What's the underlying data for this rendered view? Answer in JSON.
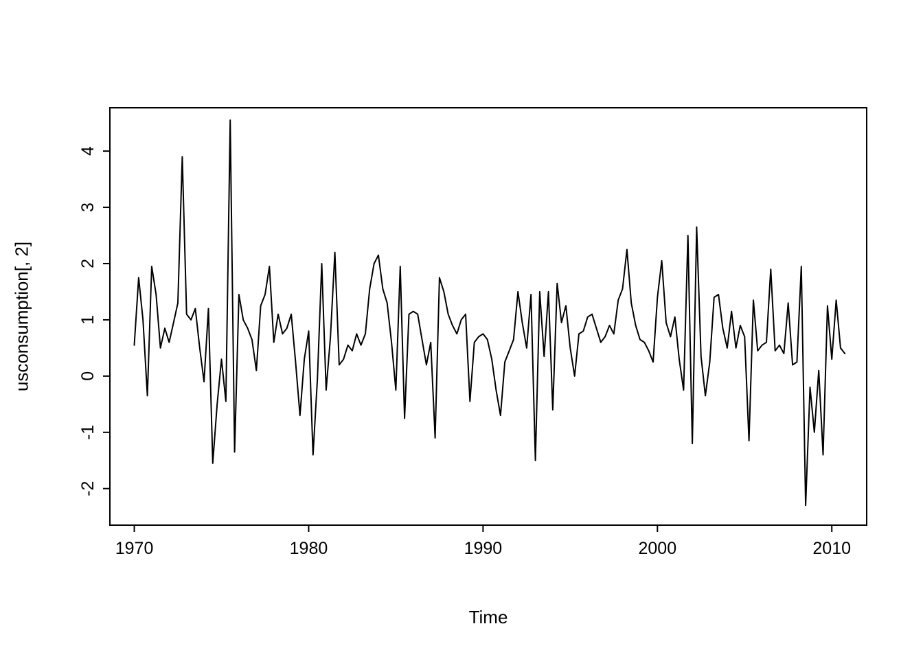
{
  "figure": {
    "background": "#ffffff",
    "line_color": "#000000",
    "axis_color": "#000000",
    "text_color": "#000000"
  },
  "chart_data": {
    "type": "line",
    "title": "",
    "xlabel": "Time",
    "ylabel": "usconsumption[, 2]",
    "legend": null,
    "grid": false,
    "x_start": 1970,
    "x_step": 0.25,
    "xticks": [
      1970,
      1980,
      1990,
      2000,
      2010
    ],
    "yticks": [
      -2,
      -1,
      0,
      1,
      2,
      3,
      4
    ],
    "xlim": [
      1968.6,
      2012.0
    ],
    "ylim": [
      -2.65,
      4.77
    ],
    "values": [
      0.55,
      1.75,
      1.0,
      -0.35,
      1.95,
      1.45,
      0.5,
      0.85,
      0.6,
      0.95,
      1.3,
      3.9,
      1.1,
      1.0,
      1.2,
      0.5,
      -0.1,
      1.2,
      -1.55,
      -0.5,
      0.3,
      -0.45,
      4.55,
      -1.35,
      1.45,
      1.0,
      0.85,
      0.65,
      0.1,
      1.25,
      1.45,
      1.95,
      0.6,
      1.1,
      0.75,
      0.85,
      1.1,
      0.25,
      -0.7,
      0.3,
      0.8,
      -1.4,
      -0.05,
      2.0,
      -0.25,
      0.7,
      2.2,
      0.2,
      0.3,
      0.55,
      0.45,
      0.75,
      0.55,
      0.75,
      1.55,
      2.0,
      2.15,
      1.55,
      1.3,
      0.6,
      -0.25,
      1.95,
      -0.75,
      1.1,
      1.15,
      1.1,
      0.65,
      0.2,
      0.6,
      -1.1,
      1.75,
      1.5,
      1.1,
      0.9,
      0.75,
      1.0,
      1.1,
      -0.45,
      0.6,
      0.7,
      0.75,
      0.65,
      0.3,
      -0.25,
      -0.7,
      0.25,
      0.45,
      0.65,
      1.5,
      0.95,
      0.5,
      1.45,
      -1.5,
      1.5,
      0.35,
      1.5,
      -0.6,
      1.65,
      0.95,
      1.25,
      0.5,
      0.0,
      0.75,
      0.8,
      1.05,
      1.1,
      0.85,
      0.6,
      0.7,
      0.9,
      0.75,
      1.35,
      1.55,
      2.25,
      1.3,
      0.9,
      0.65,
      0.6,
      0.45,
      0.25,
      1.4,
      2.05,
      0.95,
      0.7,
      1.05,
      0.3,
      -0.25,
      2.5,
      -1.2,
      2.65,
      0.35,
      -0.35,
      0.25,
      1.4,
      1.45,
      0.85,
      0.5,
      1.15,
      0.5,
      0.9,
      0.7,
      -1.15,
      1.35,
      0.45,
      0.55,
      0.6,
      1.9,
      0.45,
      0.55,
      0.4,
      1.3,
      0.2,
      0.25,
      1.95,
      -2.3,
      -0.2,
      -1.0,
      0.1,
      -1.4,
      1.25,
      0.3,
      1.35,
      0.5,
      0.4
    ]
  }
}
